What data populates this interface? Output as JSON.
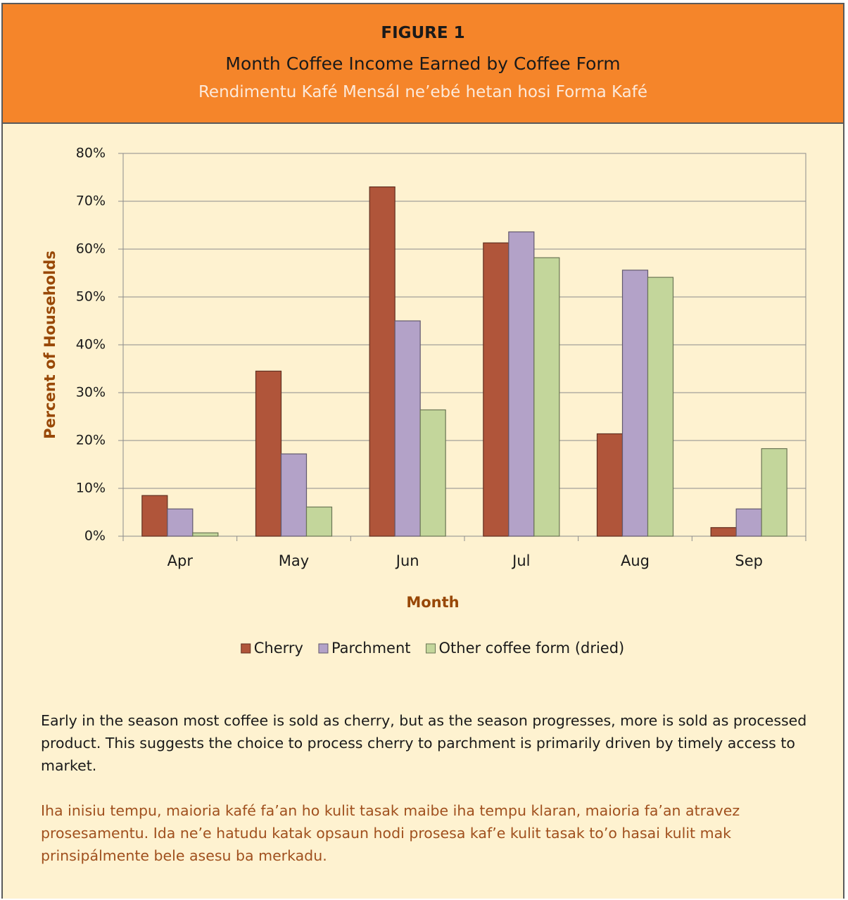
{
  "chart_data": {
    "type": "bar",
    "title": "FIGURE 1",
    "subtitle": "Month Coffee Income Earned by Coffee Form",
    "subtitle_tetum": "Rendimentu Kafé Mensál ne’ebé hetan hosi Forma Kafé",
    "x_label": "Month",
    "y_label": "Percent of Households",
    "categories": [
      "Apr",
      "May",
      "Jun",
      "Jul",
      "Aug",
      "Sep"
    ],
    "series": [
      {
        "name": "Cherry",
        "color": "#b0553a",
        "values": [
          8.5,
          34.5,
          73,
          61.3,
          21.4,
          1.8
        ]
      },
      {
        "name": "Parchment",
        "color": "#b3a2c8",
        "values": [
          5.7,
          17.2,
          45,
          63.6,
          55.6,
          5.7
        ]
      },
      {
        "name": "Other coffee form (dried)",
        "color": "#c3d69b",
        "values": [
          0.7,
          6.1,
          26.4,
          58.2,
          54.1,
          18.3
        ]
      }
    ],
    "ylim": [
      0,
      80
    ],
    "yticks": [
      {
        "value": 0,
        "label": "0%"
      },
      {
        "value": 10,
        "label": "10%"
      },
      {
        "value": 20,
        "label": "20%"
      },
      {
        "value": 30,
        "label": "30%"
      },
      {
        "value": 40,
        "label": "40%"
      },
      {
        "value": 50,
        "label": "50%"
      },
      {
        "value": 60,
        "label": "60%"
      },
      {
        "value": 70,
        "label": "70%"
      },
      {
        "value": 80,
        "label": "80%"
      }
    ],
    "grid": true,
    "legend": "bottom"
  },
  "text": {
    "english": "Early in the season most coffee is sold as cherry, but as the season progresses, more is sold as processed product. This suggests the choice to process cherry to parchment is primarily driven by timely access to market.",
    "tetum": "Iha inisiu tempu, maioria kafé fa’an ho kulit tasak maibe iha tempu klaran, maioria fa’an atravez prosesamentu. Ida ne’e hatudu katak opsaun hodi prosesa kaf’e kulit tasak to’o hasai kulit mak prinsipálmente bele asesu ba merkadu."
  }
}
